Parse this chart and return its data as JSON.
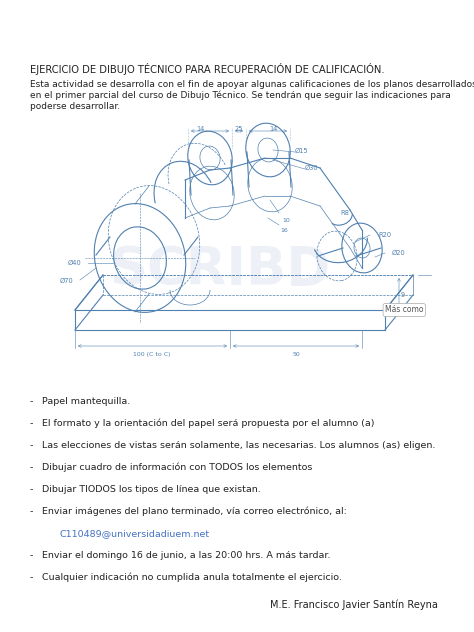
{
  "title": "EJERCICIO DE DIBUJO TÉCNICO PARA RECUPERACIÓN DE CALIFICACIÓN.",
  "intro_line1": "Esta actividad se desarrolla con el fin de apoyar algunas calificaciones de los planos desarrollados",
  "intro_line2": "en el primer parcial del curso de Dibujo Técnico. Se tendrán que seguir las indicaciones para",
  "intro_line3": "poderse desarrollar.",
  "email": "C110489@universidadiuem.net",
  "author": "M.E. Francisco Javier Santín Reyna",
  "bullet_items": [
    [
      "Papel mantequilla.",
      false
    ],
    [
      "El formato y la orientación del papel será propuesta por el alumno (a)",
      false
    ],
    [
      "Las elecciones de vistas serán solamente, las necesarias. Los alumnos (as) eligen.",
      false
    ],
    [
      "Dibujar cuadro de información con TODOS los elementos",
      false
    ],
    [
      "Dibujar TIODOS los tipos de línea que existan.",
      false
    ],
    [
      "Enviar imágenes del plano terminado, vía correo electrónico, al:",
      false
    ],
    [
      "C110489@universidadiuem.net",
      true
    ],
    [
      "Enviar el domingo 16 de junio, a las 20:00 hrs. A más tardar.",
      false
    ],
    [
      "Cualquier indicación no cumplida anula totalmente el ejercicio.",
      false
    ]
  ],
  "bg_color": "#ffffff",
  "text_color": "#222222",
  "draw_color": "#5080b0",
  "dim_color": "#5080b0",
  "link_color": "#4472c4",
  "watermark_color": "#ccd8ea"
}
